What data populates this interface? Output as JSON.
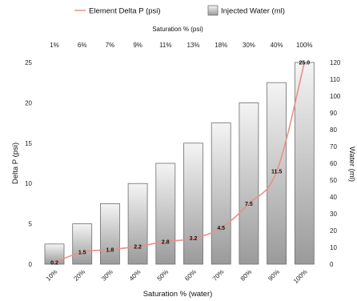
{
  "chart_data": {
    "type": "bar",
    "legend": {
      "position": "top",
      "line_label": "Element Delta P (psi)",
      "bar_label": "Injected Water (ml)"
    },
    "x_top_title": "Saturation % (psi)",
    "x_top_categories": [
      "1%",
      "6%",
      "7%",
      "9%",
      "11%",
      "13%",
      "18%",
      "30%",
      "40%",
      "100%"
    ],
    "x_bottom_title": "Saturation % (water)",
    "categories": [
      "10%",
      "20%",
      "30%",
      "40%",
      "50%",
      "60%",
      "70%",
      "80%",
      "90%",
      "100%"
    ],
    "y_left_title": "Delta P (psi)",
    "y_left_range": [
      0,
      25
    ],
    "y_left_ticks": [
      0,
      5,
      10,
      15,
      20,
      25
    ],
    "y_right_title": "Water (ml)",
    "y_right_range": [
      0,
      120
    ],
    "y_right_ticks": [
      0,
      10,
      20,
      30,
      40,
      50,
      60,
      70,
      80,
      90,
      100,
      110,
      120
    ],
    "grid": false,
    "colors": {
      "line": "#e8908a",
      "bar_top": "#f4f4f4",
      "bar_bottom": "#9a9a9a",
      "bar_stroke": "#6e6e6e"
    },
    "series": [
      {
        "name": "Injected Water (ml)",
        "type": "bar",
        "axis": "right",
        "values": [
          12,
          24,
          36,
          48,
          60,
          72,
          84,
          96,
          108,
          120
        ]
      },
      {
        "name": "Element Delta P (psi)",
        "type": "line",
        "axis": "left",
        "values": [
          0.2,
          1.5,
          1.8,
          2.2,
          2.8,
          3.2,
          4.5,
          7.5,
          11.5,
          25.0
        ],
        "labels": [
          "0.2",
          "1.5",
          "1.8",
          "2.2",
          "2.8",
          "3.2",
          "4.5",
          "7.5",
          "11.5",
          "25.0"
        ]
      }
    ]
  }
}
